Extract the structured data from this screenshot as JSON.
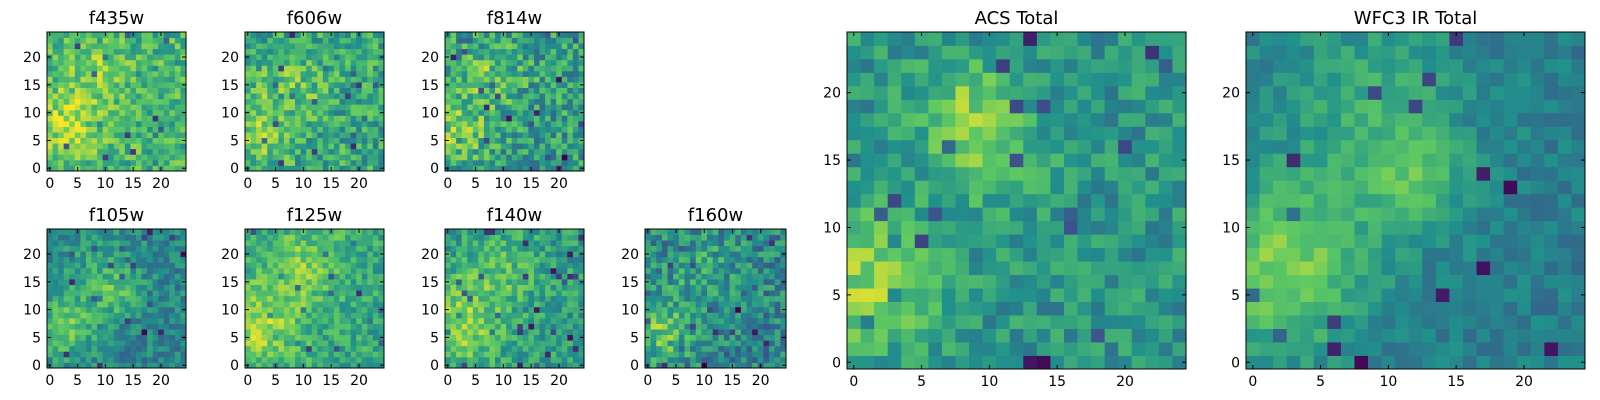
{
  "colormap": {
    "name": "viridis",
    "stops": [
      "#440154",
      "#3b528b",
      "#21918c",
      "#5ec962",
      "#fde725"
    ]
  },
  "chart_data": [
    {
      "type": "heatmap",
      "title": "f435w",
      "grid_size": 25,
      "xticks": [
        "0",
        "5",
        "10",
        "15",
        "20"
      ],
      "yticks": [
        "0",
        "5",
        "10",
        "15",
        "20"
      ],
      "xlim": [
        -0.5,
        24.5
      ],
      "ylim": [
        -0.5,
        24.5
      ],
      "hotspots": [
        {
          "x": 3,
          "y": 8,
          "amp": 0.18,
          "sigma": 5
        },
        {
          "x": 8,
          "y": 18,
          "amp": 0.12,
          "sigma": 4
        }
      ],
      "base": 0.66,
      "noise": 0.18,
      "seed": 11
    },
    {
      "type": "heatmap",
      "title": "f606w",
      "grid_size": 25,
      "xticks": [
        "0",
        "5",
        "10",
        "15",
        "20"
      ],
      "yticks": [
        "0",
        "5",
        "10",
        "15",
        "20"
      ],
      "xlim": [
        -0.5,
        24.5
      ],
      "ylim": [
        -0.5,
        24.5
      ],
      "hotspots": [
        {
          "x": 2,
          "y": 6,
          "amp": 0.22,
          "sigma": 4
        },
        {
          "x": 8,
          "y": 15,
          "amp": 0.16,
          "sigma": 4
        }
      ],
      "base": 0.6,
      "noise": 0.2,
      "seed": 23
    },
    {
      "type": "heatmap",
      "title": "f814w",
      "grid_size": 25,
      "xticks": [
        "0",
        "5",
        "10",
        "15",
        "20"
      ],
      "yticks": [
        "0",
        "5",
        "10",
        "15",
        "20"
      ],
      "xlim": [
        -0.5,
        24.5
      ],
      "ylim": [
        -0.5,
        24.5
      ],
      "hotspots": [
        {
          "x": 2,
          "y": 7,
          "amp": 0.25,
          "sigma": 4
        },
        {
          "x": 8,
          "y": 17,
          "amp": 0.18,
          "sigma": 4
        }
      ],
      "base": 0.55,
      "noise": 0.22,
      "seed": 37
    },
    {
      "type": "heatmap",
      "title": "f105w",
      "grid_size": 25,
      "xticks": [
        "0",
        "5",
        "10",
        "15",
        "20"
      ],
      "yticks": [
        "0",
        "5",
        "10",
        "15",
        "20"
      ],
      "xlim": [
        -0.5,
        24.5
      ],
      "ylim": [
        -0.5,
        24.5
      ],
      "hotspots": [
        {
          "x": 3,
          "y": 7,
          "amp": 0.3,
          "sigma": 4
        },
        {
          "x": 12,
          "y": 13,
          "amp": 0.2,
          "sigma": 3
        },
        {
          "x": 9,
          "y": 18,
          "amp": 0.12,
          "sigma": 5
        }
      ],
      "base": 0.45,
      "noise": 0.14,
      "seed": 41
    },
    {
      "type": "heatmap",
      "title": "f125w",
      "grid_size": 25,
      "xticks": [
        "0",
        "5",
        "10",
        "15",
        "20"
      ],
      "yticks": [
        "0",
        "5",
        "10",
        "15",
        "20"
      ],
      "xlim": [
        -0.5,
        24.5
      ],
      "ylim": [
        -0.5,
        24.5
      ],
      "hotspots": [
        {
          "x": 2,
          "y": 7,
          "amp": 0.25,
          "sigma": 5
        },
        {
          "x": 10,
          "y": 18,
          "amp": 0.18,
          "sigma": 5
        }
      ],
      "base": 0.6,
      "noise": 0.15,
      "seed": 53
    },
    {
      "type": "heatmap",
      "title": "f140w",
      "grid_size": 25,
      "xticks": [
        "0",
        "5",
        "10",
        "15",
        "20"
      ],
      "yticks": [
        "0",
        "5",
        "10",
        "15",
        "20"
      ],
      "xlim": [
        -0.5,
        24.5
      ],
      "ylim": [
        -0.5,
        24.5
      ],
      "hotspots": [
        {
          "x": 2,
          "y": 7,
          "amp": 0.28,
          "sigma": 5
        },
        {
          "x": 9,
          "y": 17,
          "amp": 0.16,
          "sigma": 5
        }
      ],
      "base": 0.55,
      "noise": 0.16,
      "seed": 67
    },
    {
      "type": "heatmap",
      "title": "f160w",
      "grid_size": 25,
      "xticks": [
        "0",
        "5",
        "10",
        "15",
        "20"
      ],
      "yticks": [
        "0",
        "5",
        "10",
        "15",
        "20"
      ],
      "xlim": [
        -0.5,
        24.5
      ],
      "ylim": [
        -0.5,
        24.5
      ],
      "hotspots": [
        {
          "x": 2,
          "y": 6,
          "amp": 0.3,
          "sigma": 4
        },
        {
          "x": 10,
          "y": 17,
          "amp": 0.14,
          "sigma": 5
        }
      ],
      "base": 0.45,
      "noise": 0.2,
      "seed": 79
    },
    {
      "type": "heatmap",
      "title": "ACS Total",
      "grid_size": 25,
      "xticks": [
        "0",
        "5",
        "10",
        "15",
        "20"
      ],
      "yticks": [
        "0",
        "5",
        "10",
        "15",
        "20"
      ],
      "xlim": [
        -0.5,
        24.5
      ],
      "ylim": [
        -0.5,
        24.5
      ],
      "hotspots": [
        {
          "x": 1,
          "y": 6,
          "amp": 0.3,
          "sigma": 3.5
        },
        {
          "x": 8,
          "y": 19,
          "amp": 0.22,
          "sigma": 2.5
        },
        {
          "x": 10,
          "y": 15,
          "amp": 0.15,
          "sigma": 3
        }
      ],
      "base": 0.52,
      "noise": 0.14,
      "seed": 97
    },
    {
      "type": "heatmap",
      "title": "WFC3 IR Total",
      "grid_size": 25,
      "xticks": [
        "0",
        "5",
        "10",
        "15",
        "20"
      ],
      "yticks": [
        "0",
        "5",
        "10",
        "15",
        "20"
      ],
      "xlim": [
        -0.5,
        24.5
      ],
      "ylim": [
        -0.5,
        24.5
      ],
      "hotspots": [
        {
          "x": 2,
          "y": 7,
          "amp": 0.38,
          "sigma": 4.5
        },
        {
          "x": 12,
          "y": 13,
          "amp": 0.24,
          "sigma": 2.5
        },
        {
          "x": 9,
          "y": 19,
          "amp": 0.2,
          "sigma": 5
        }
      ],
      "base": 0.42,
      "noise": 0.09,
      "seed": 113
    }
  ]
}
